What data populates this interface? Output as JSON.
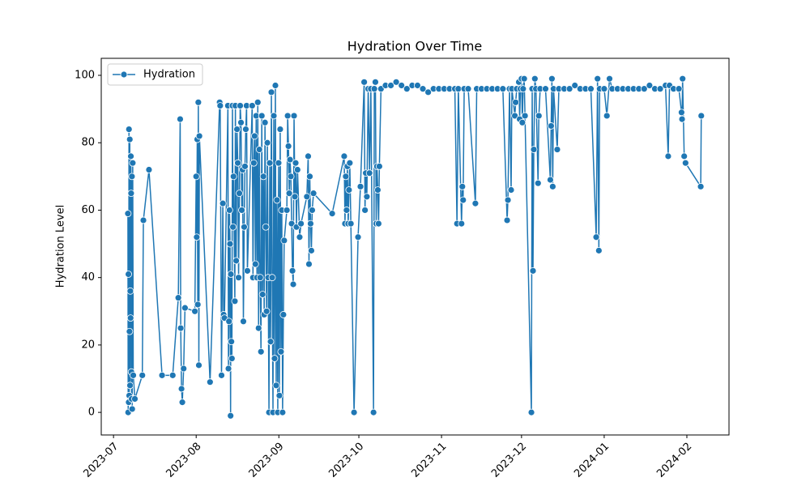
{
  "chart_data": {
    "type": "line",
    "title": "Hydration Over Time",
    "y_label": "Hydration Level",
    "x": [
      5.4,
      5.5,
      5.6,
      5.7,
      5.8,
      5.9,
      6.0,
      6.1,
      6.2,
      6.3,
      6.4,
      6.5,
      6.6,
      6.7,
      6.8,
      6.9,
      7.0,
      7.2,
      7.4,
      8.0,
      10.8,
      11.2,
      13.3,
      18.2,
      22.2,
      24.3,
      25.0,
      25.2,
      25.5,
      25.8,
      26.3,
      26.8,
      30.5,
      31.0,
      31.2,
      31.4,
      31.6,
      31.8,
      32.0,
      32.2,
      36.2,
      39.8,
      40.0,
      40.5,
      41.0,
      41.3,
      41.6,
      42.9,
      43.1,
      43.3,
      43.5,
      43.7,
      43.9,
      44.0,
      44.2,
      44.4,
      44.6,
      44.8,
      45.0,
      45.5,
      45.7,
      46.0,
      46.3,
      46.6,
      46.9,
      47.2,
      47.5,
      47.8,
      48.1,
      48.4,
      48.7,
      49.0,
      49.3,
      49.6,
      49.9,
      50.2,
      52.0,
      52.3,
      52.6,
      52.9,
      53.2,
      53.5,
      53.8,
      54.1,
      54.4,
      54.7,
      55.0,
      55.3,
      55.6,
      55.9,
      56.2,
      56.5,
      56.8,
      57.1,
      57.4,
      57.7,
      58.0,
      58.3,
      58.6,
      58.9,
      59.2,
      59.5,
      59.8,
      60.1,
      60.4,
      60.7,
      61.0,
      61.3,
      61.6,
      61.9,
      62.2,
      62.5,
      62.8,
      63.1,
      63.4,
      63.7,
      64.0,
      65.0,
      65.3,
      65.6,
      65.9,
      66.2,
      66.5,
      66.8,
      67.1,
      67.4,
      67.7,
      68.0,
      68.3,
      68.6,
      69.0,
      69.8,
      70.3,
      72.5,
      73.0,
      73.3,
      73.6,
      73.9,
      74.2,
      74.5,
      75.0,
      82.0,
      86.5,
      86.8,
      87.1,
      87.4,
      87.7,
      88.0,
      88.3,
      88.6,
      89.0,
      90.2,
      91.7,
      92.6,
      94.0,
      94.3,
      94.6,
      95.0,
      95.5,
      96.0,
      96.5,
      97.5,
      97.8,
      98.2,
      98.5,
      98.8,
      99.1,
      99.4,
      99.7,
      100.3,
      102,
      104,
      106,
      108,
      110,
      112,
      114,
      116,
      118,
      120,
      122,
      124,
      126,
      128,
      128.8,
      129.3,
      130.5,
      130.8,
      131.1,
      131.5,
      133,
      135.7,
      136.2,
      138,
      140,
      142,
      144,
      146,
      147.6,
      147.9,
      148.5,
      149.1,
      149.4,
      150.5,
      150.8,
      151.2,
      152.0,
      152.3,
      152.6,
      153.0,
      153.3,
      153.6,
      154.0,
      154.3,
      156.7,
      157.0,
      157.3,
      157.6,
      158.0,
      158.4,
      159.2,
      159.5,
      160,
      162,
      163.8,
      164.1,
      164.4,
      164.7,
      165.0,
      166.4,
      167,
      169,
      171,
      173,
      175,
      177,
      179,
      181.0,
      181.5,
      182.0,
      182.3,
      184,
      185.0,
      186.0,
      187,
      189,
      191,
      193,
      195,
      197,
      199,
      201,
      203,
      205,
      207,
      208.0,
      208.5,
      210,
      212,
      213.0,
      213.2,
      213.4,
      214.0,
      214.5,
      220.2,
      220.4
    ],
    "series": [
      {
        "name": "Hydration",
        "color": "#1f77b4",
        "values": [
          59,
          0,
          41,
          3,
          84,
          5,
          24,
          81,
          8,
          36,
          28,
          76,
          65,
          12,
          4,
          70,
          1,
          74,
          11,
          4,
          11,
          57,
          72,
          11,
          11,
          34,
          87,
          25,
          7,
          3,
          13,
          31,
          30,
          70,
          52,
          81,
          32,
          92,
          14,
          82,
          9,
          92,
          91,
          11,
          62,
          29,
          28,
          91,
          13,
          27,
          60,
          50,
          -1,
          41,
          21,
          16,
          91,
          55,
          70,
          33,
          91,
          45,
          84,
          74,
          40,
          65,
          91,
          86,
          60,
          72,
          27,
          55,
          73,
          84,
          91,
          42,
          91,
          40,
          74,
          82,
          44,
          88,
          40,
          92,
          25,
          78,
          40,
          18,
          88,
          35,
          70,
          29,
          86,
          55,
          30,
          80,
          40,
          0,
          74,
          21,
          95,
          40,
          0,
          88,
          16,
          97,
          8,
          63,
          0,
          74,
          5,
          84,
          18,
          60,
          0,
          29,
          51,
          60,
          88,
          79,
          65,
          75,
          70,
          56,
          42,
          38,
          88,
          64,
          74,
          55,
          72,
          52,
          56,
          64,
          76,
          44,
          70,
          56,
          48,
          60,
          65,
          59,
          76,
          56,
          70,
          60,
          73,
          56,
          66,
          74,
          56,
          0,
          52,
          67,
          98,
          60,
          71,
          64,
          96,
          71,
          96,
          0,
          96,
          98,
          56,
          73,
          66,
          56,
          73,
          96,
          97,
          97,
          98,
          97,
          96,
          97,
          97,
          96,
          95,
          96,
          96,
          96,
          96,
          96,
          56,
          96,
          56,
          67,
          63,
          96,
          96,
          62,
          96,
          96,
          96,
          96,
          96,
          96,
          57,
          63,
          96,
          66,
          96,
          88,
          92,
          96,
          98,
          87,
          96,
          99,
          86,
          96,
          99,
          88,
          0,
          96,
          42,
          78,
          99,
          96,
          68,
          88,
          96,
          96,
          69,
          85,
          99,
          67,
          96,
          78,
          96,
          96,
          96,
          97,
          96,
          96,
          96,
          52,
          99,
          48,
          96,
          96,
          88,
          99,
          96,
          96,
          96,
          96,
          96,
          96,
          96,
          97,
          96,
          96,
          97,
          76,
          97,
          96,
          96,
          89,
          87,
          99,
          76,
          74,
          67,
          88
        ]
      }
    ],
    "xlim": [
      -4.6,
      230.8
    ],
    "ylim": [
      -6.7,
      105.05
    ],
    "xticks": [
      {
        "value": 0,
        "label": "2023-07"
      },
      {
        "value": 31,
        "label": "2023-08"
      },
      {
        "value": 62,
        "label": "2023-09"
      },
      {
        "value": 92,
        "label": "2023-10"
      },
      {
        "value": 123,
        "label": "2023-11"
      },
      {
        "value": 153,
        "label": "2023-12"
      },
      {
        "value": 184,
        "label": "2024-01"
      },
      {
        "value": 215,
        "label": "2024-02"
      }
    ],
    "yticks": [
      0,
      20,
      40,
      60,
      80,
      100
    ],
    "legend": "upper left",
    "marker": "o"
  }
}
